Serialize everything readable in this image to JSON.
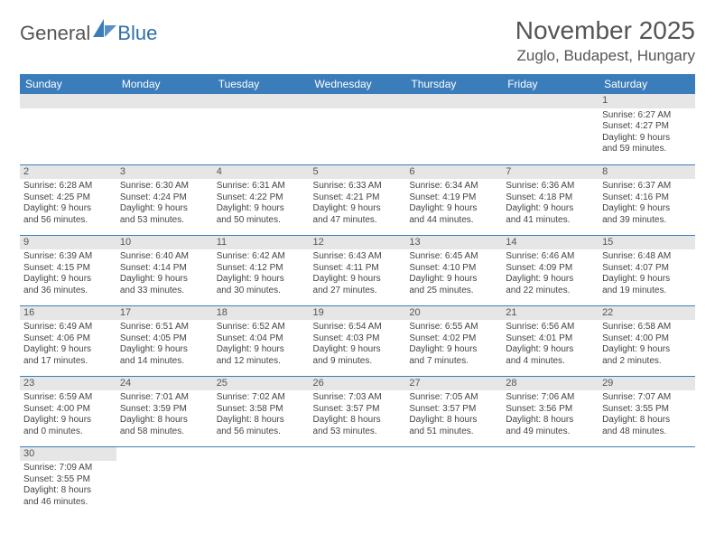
{
  "logo": {
    "text1": "General",
    "text2": "Blue"
  },
  "title": {
    "month": "November 2025",
    "location": "Zuglo, Budapest, Hungary"
  },
  "colors": {
    "header_bg": "#3b7dbb",
    "header_text": "#ffffff",
    "daynum_bg": "#e6e6e6",
    "cell_border": "#3b7dbb",
    "body_text": "#444444",
    "title_text": "#555555"
  },
  "columns": [
    "Sunday",
    "Monday",
    "Tuesday",
    "Wednesday",
    "Thursday",
    "Friday",
    "Saturday"
  ],
  "weeks": [
    [
      {
        "blank": true
      },
      {
        "blank": true
      },
      {
        "blank": true
      },
      {
        "blank": true
      },
      {
        "blank": true
      },
      {
        "blank": true
      },
      {
        "day": "1",
        "sunrise": "Sunrise: 6:27 AM",
        "sunset": "Sunset: 4:27 PM",
        "dl1": "Daylight: 9 hours",
        "dl2": "and 59 minutes."
      }
    ],
    [
      {
        "day": "2",
        "sunrise": "Sunrise: 6:28 AM",
        "sunset": "Sunset: 4:25 PM",
        "dl1": "Daylight: 9 hours",
        "dl2": "and 56 minutes."
      },
      {
        "day": "3",
        "sunrise": "Sunrise: 6:30 AM",
        "sunset": "Sunset: 4:24 PM",
        "dl1": "Daylight: 9 hours",
        "dl2": "and 53 minutes."
      },
      {
        "day": "4",
        "sunrise": "Sunrise: 6:31 AM",
        "sunset": "Sunset: 4:22 PM",
        "dl1": "Daylight: 9 hours",
        "dl2": "and 50 minutes."
      },
      {
        "day": "5",
        "sunrise": "Sunrise: 6:33 AM",
        "sunset": "Sunset: 4:21 PM",
        "dl1": "Daylight: 9 hours",
        "dl2": "and 47 minutes."
      },
      {
        "day": "6",
        "sunrise": "Sunrise: 6:34 AM",
        "sunset": "Sunset: 4:19 PM",
        "dl1": "Daylight: 9 hours",
        "dl2": "and 44 minutes."
      },
      {
        "day": "7",
        "sunrise": "Sunrise: 6:36 AM",
        "sunset": "Sunset: 4:18 PM",
        "dl1": "Daylight: 9 hours",
        "dl2": "and 41 minutes."
      },
      {
        "day": "8",
        "sunrise": "Sunrise: 6:37 AM",
        "sunset": "Sunset: 4:16 PM",
        "dl1": "Daylight: 9 hours",
        "dl2": "and 39 minutes."
      }
    ],
    [
      {
        "day": "9",
        "sunrise": "Sunrise: 6:39 AM",
        "sunset": "Sunset: 4:15 PM",
        "dl1": "Daylight: 9 hours",
        "dl2": "and 36 minutes."
      },
      {
        "day": "10",
        "sunrise": "Sunrise: 6:40 AM",
        "sunset": "Sunset: 4:14 PM",
        "dl1": "Daylight: 9 hours",
        "dl2": "and 33 minutes."
      },
      {
        "day": "11",
        "sunrise": "Sunrise: 6:42 AM",
        "sunset": "Sunset: 4:12 PM",
        "dl1": "Daylight: 9 hours",
        "dl2": "and 30 minutes."
      },
      {
        "day": "12",
        "sunrise": "Sunrise: 6:43 AM",
        "sunset": "Sunset: 4:11 PM",
        "dl1": "Daylight: 9 hours",
        "dl2": "and 27 minutes."
      },
      {
        "day": "13",
        "sunrise": "Sunrise: 6:45 AM",
        "sunset": "Sunset: 4:10 PM",
        "dl1": "Daylight: 9 hours",
        "dl2": "and 25 minutes."
      },
      {
        "day": "14",
        "sunrise": "Sunrise: 6:46 AM",
        "sunset": "Sunset: 4:09 PM",
        "dl1": "Daylight: 9 hours",
        "dl2": "and 22 minutes."
      },
      {
        "day": "15",
        "sunrise": "Sunrise: 6:48 AM",
        "sunset": "Sunset: 4:07 PM",
        "dl1": "Daylight: 9 hours",
        "dl2": "and 19 minutes."
      }
    ],
    [
      {
        "day": "16",
        "sunrise": "Sunrise: 6:49 AM",
        "sunset": "Sunset: 4:06 PM",
        "dl1": "Daylight: 9 hours",
        "dl2": "and 17 minutes."
      },
      {
        "day": "17",
        "sunrise": "Sunrise: 6:51 AM",
        "sunset": "Sunset: 4:05 PM",
        "dl1": "Daylight: 9 hours",
        "dl2": "and 14 minutes."
      },
      {
        "day": "18",
        "sunrise": "Sunrise: 6:52 AM",
        "sunset": "Sunset: 4:04 PM",
        "dl1": "Daylight: 9 hours",
        "dl2": "and 12 minutes."
      },
      {
        "day": "19",
        "sunrise": "Sunrise: 6:54 AM",
        "sunset": "Sunset: 4:03 PM",
        "dl1": "Daylight: 9 hours",
        "dl2": "and 9 minutes."
      },
      {
        "day": "20",
        "sunrise": "Sunrise: 6:55 AM",
        "sunset": "Sunset: 4:02 PM",
        "dl1": "Daylight: 9 hours",
        "dl2": "and 7 minutes."
      },
      {
        "day": "21",
        "sunrise": "Sunrise: 6:56 AM",
        "sunset": "Sunset: 4:01 PM",
        "dl1": "Daylight: 9 hours",
        "dl2": "and 4 minutes."
      },
      {
        "day": "22",
        "sunrise": "Sunrise: 6:58 AM",
        "sunset": "Sunset: 4:00 PM",
        "dl1": "Daylight: 9 hours",
        "dl2": "and 2 minutes."
      }
    ],
    [
      {
        "day": "23",
        "sunrise": "Sunrise: 6:59 AM",
        "sunset": "Sunset: 4:00 PM",
        "dl1": "Daylight: 9 hours",
        "dl2": "and 0 minutes."
      },
      {
        "day": "24",
        "sunrise": "Sunrise: 7:01 AM",
        "sunset": "Sunset: 3:59 PM",
        "dl1": "Daylight: 8 hours",
        "dl2": "and 58 minutes."
      },
      {
        "day": "25",
        "sunrise": "Sunrise: 7:02 AM",
        "sunset": "Sunset: 3:58 PM",
        "dl1": "Daylight: 8 hours",
        "dl2": "and 56 minutes."
      },
      {
        "day": "26",
        "sunrise": "Sunrise: 7:03 AM",
        "sunset": "Sunset: 3:57 PM",
        "dl1": "Daylight: 8 hours",
        "dl2": "and 53 minutes."
      },
      {
        "day": "27",
        "sunrise": "Sunrise: 7:05 AM",
        "sunset": "Sunset: 3:57 PM",
        "dl1": "Daylight: 8 hours",
        "dl2": "and 51 minutes."
      },
      {
        "day": "28",
        "sunrise": "Sunrise: 7:06 AM",
        "sunset": "Sunset: 3:56 PM",
        "dl1": "Daylight: 8 hours",
        "dl2": "and 49 minutes."
      },
      {
        "day": "29",
        "sunrise": "Sunrise: 7:07 AM",
        "sunset": "Sunset: 3:55 PM",
        "dl1": "Daylight: 8 hours",
        "dl2": "and 48 minutes."
      }
    ],
    [
      {
        "day": "30",
        "sunrise": "Sunrise: 7:09 AM",
        "sunset": "Sunset: 3:55 PM",
        "dl1": "Daylight: 8 hours",
        "dl2": "and 46 minutes."
      },
      {
        "blank": true
      },
      {
        "blank": true
      },
      {
        "blank": true
      },
      {
        "blank": true
      },
      {
        "blank": true
      },
      {
        "blank": true
      }
    ]
  ]
}
